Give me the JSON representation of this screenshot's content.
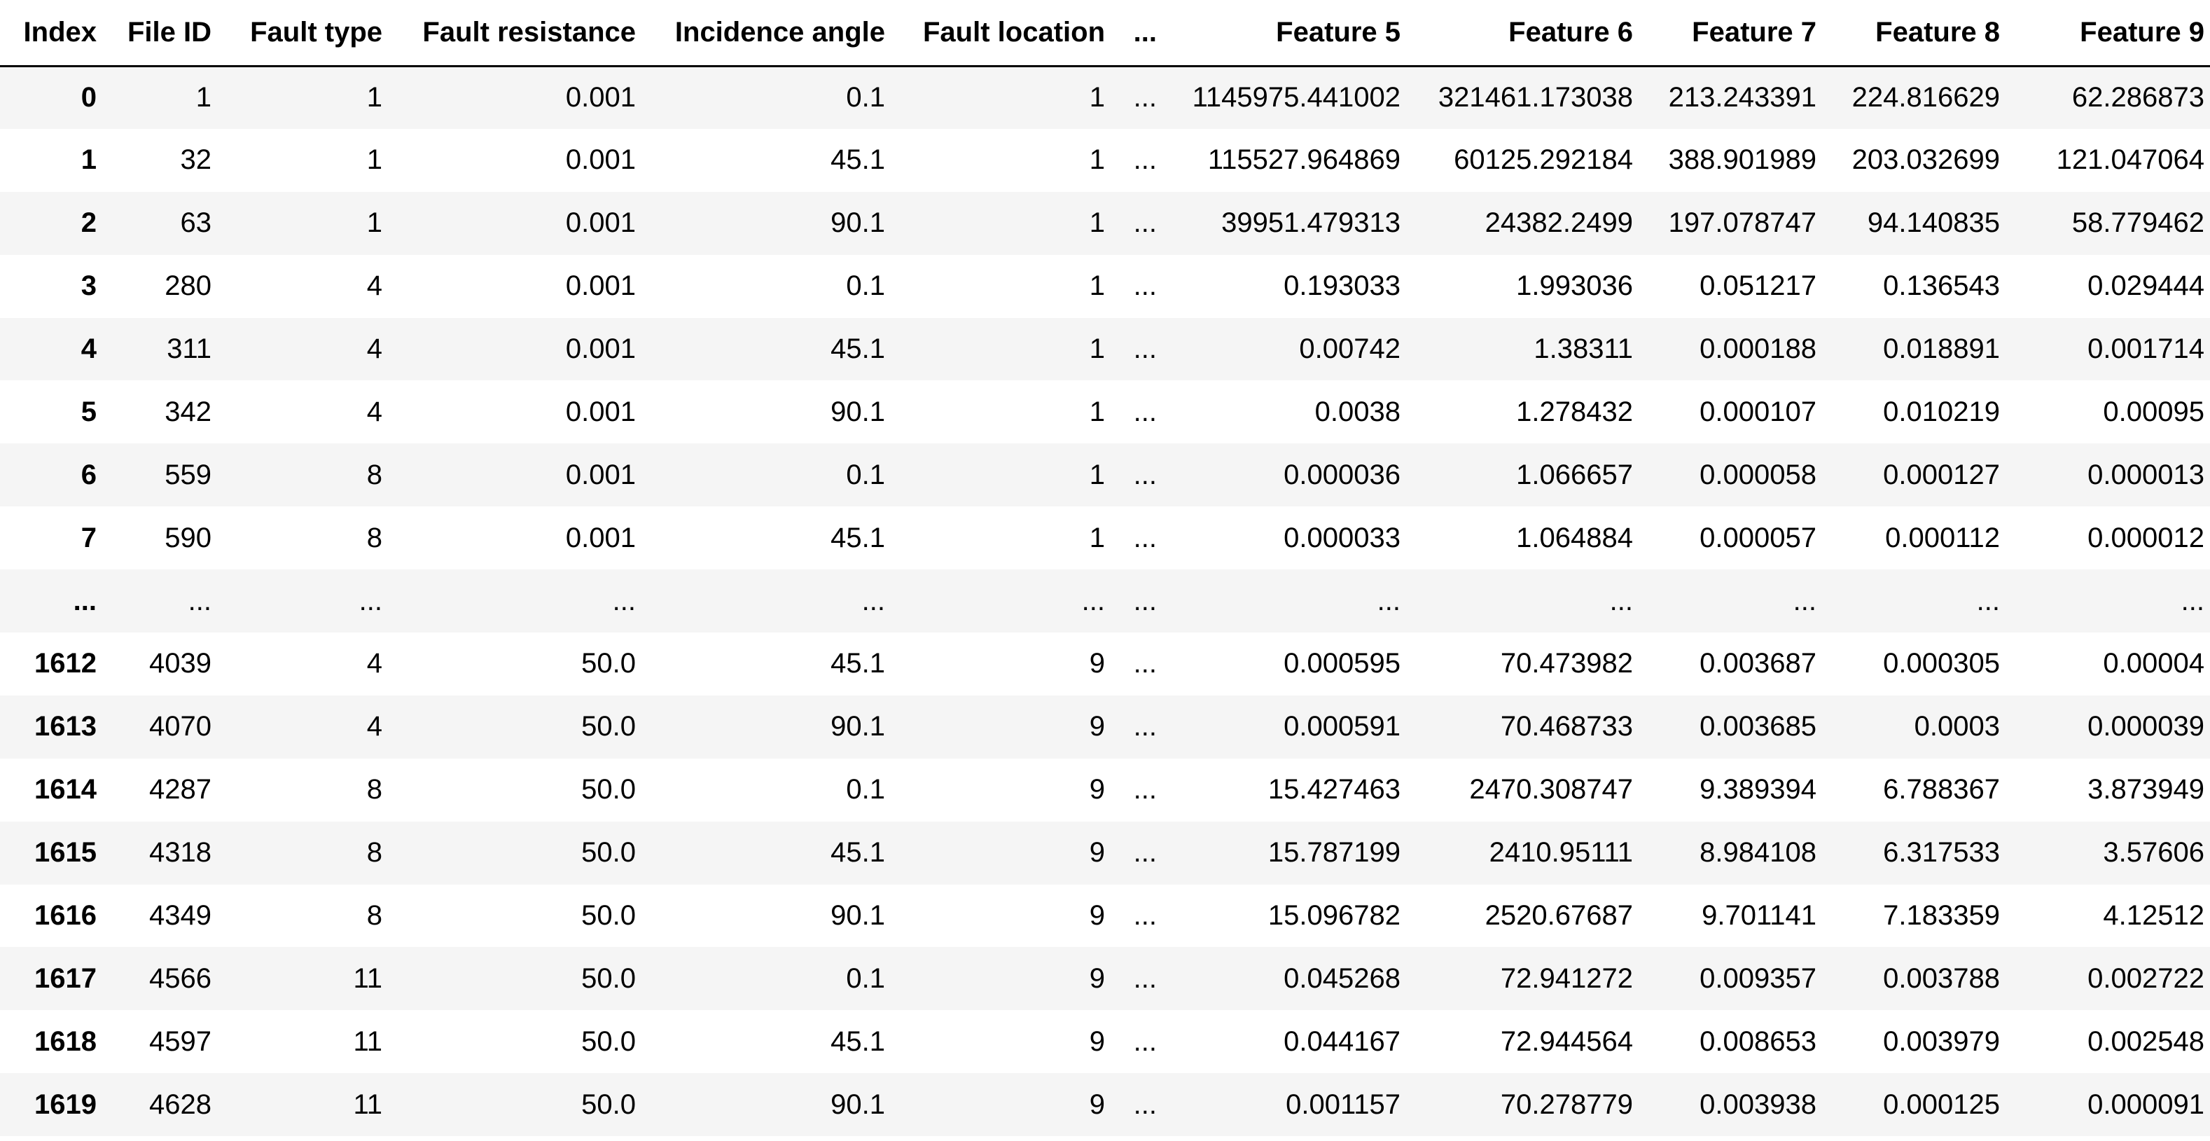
{
  "table": {
    "columns": [
      "Index",
      "File ID",
      "Fault type",
      "Fault resistance",
      "Incidence angle",
      "Fault location",
      "...",
      "Feature 5",
      "Feature 6",
      "Feature 7",
      "Feature 8",
      "Feature 9"
    ],
    "rows": [
      [
        "0",
        "1",
        "1",
        "0.001",
        "0.1",
        "1",
        "...",
        "1145975.441002",
        "321461.173038",
        "213.243391",
        "224.816629",
        "62.286873"
      ],
      [
        "1",
        "32",
        "1",
        "0.001",
        "45.1",
        "1",
        "...",
        "115527.964869",
        "60125.292184",
        "388.901989",
        "203.032699",
        "121.047064"
      ],
      [
        "2",
        "63",
        "1",
        "0.001",
        "90.1",
        "1",
        "...",
        "39951.479313",
        "24382.2499",
        "197.078747",
        "94.140835",
        "58.779462"
      ],
      [
        "3",
        "280",
        "4",
        "0.001",
        "0.1",
        "1",
        "...",
        "0.193033",
        "1.993036",
        "0.051217",
        "0.136543",
        "0.029444"
      ],
      [
        "4",
        "311",
        "4",
        "0.001",
        "45.1",
        "1",
        "...",
        "0.00742",
        "1.38311",
        "0.000188",
        "0.018891",
        "0.001714"
      ],
      [
        "5",
        "342",
        "4",
        "0.001",
        "90.1",
        "1",
        "...",
        "0.0038",
        "1.278432",
        "0.000107",
        "0.010219",
        "0.00095"
      ],
      [
        "6",
        "559",
        "8",
        "0.001",
        "0.1",
        "1",
        "...",
        "0.000036",
        "1.066657",
        "0.000058",
        "0.000127",
        "0.000013"
      ],
      [
        "7",
        "590",
        "8",
        "0.001",
        "45.1",
        "1",
        "...",
        "0.000033",
        "1.064884",
        "0.000057",
        "0.000112",
        "0.000012"
      ],
      [
        "...",
        "...",
        "...",
        "...",
        "...",
        "...",
        "...",
        "...",
        "...",
        "...",
        "...",
        "..."
      ],
      [
        "1612",
        "4039",
        "4",
        "50.0",
        "45.1",
        "9",
        "...",
        "0.000595",
        "70.473982",
        "0.003687",
        "0.000305",
        "0.00004"
      ],
      [
        "1613",
        "4070",
        "4",
        "50.0",
        "90.1",
        "9",
        "...",
        "0.000591",
        "70.468733",
        "0.003685",
        "0.0003",
        "0.000039"
      ],
      [
        "1614",
        "4287",
        "8",
        "50.0",
        "0.1",
        "9",
        "...",
        "15.427463",
        "2470.308747",
        "9.389394",
        "6.788367",
        "3.873949"
      ],
      [
        "1615",
        "4318",
        "8",
        "50.0",
        "45.1",
        "9",
        "...",
        "15.787199",
        "2410.95111",
        "8.984108",
        "6.317533",
        "3.57606"
      ],
      [
        "1616",
        "4349",
        "8",
        "50.0",
        "90.1",
        "9",
        "...",
        "15.096782",
        "2520.67687",
        "9.701141",
        "7.183359",
        "4.12512"
      ],
      [
        "1617",
        "4566",
        "11",
        "50.0",
        "0.1",
        "9",
        "...",
        "0.045268",
        "72.941272",
        "0.009357",
        "0.003788",
        "0.002722"
      ],
      [
        "1618",
        "4597",
        "11",
        "50.0",
        "45.1",
        "9",
        "...",
        "0.044167",
        "72.944564",
        "0.008653",
        "0.003979",
        "0.002548"
      ],
      [
        "1619",
        "4628",
        "11",
        "50.0",
        "90.1",
        "9",
        "...",
        "0.001157",
        "70.278779",
        "0.003938",
        "0.000125",
        "0.000091"
      ]
    ]
  }
}
